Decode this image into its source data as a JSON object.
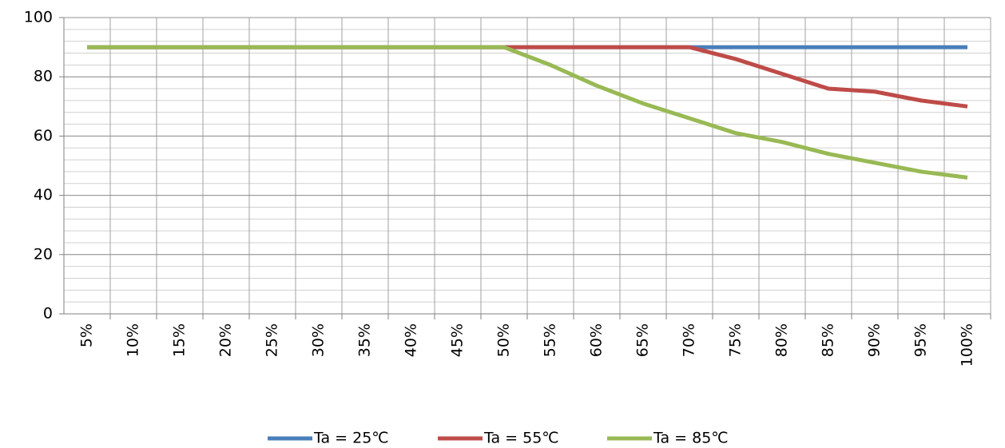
{
  "chart_data": {
    "type": "line",
    "categories": [
      "5%",
      "10%",
      "15%",
      "20%",
      "25%",
      "30%",
      "35%",
      "40%",
      "45%",
      "50%",
      "55%",
      "60%",
      "65%",
      "70%",
      "75%",
      "80%",
      "85%",
      "90%",
      "95%",
      "100%"
    ],
    "series": [
      {
        "name": "Ta = 25℃",
        "color": "#4a7ebb",
        "values": [
          90,
          90,
          90,
          90,
          90,
          90,
          90,
          90,
          90,
          90,
          90,
          90,
          90,
          90,
          90,
          90,
          90,
          90,
          90,
          90
        ]
      },
      {
        "name": "Ta = 55℃",
        "color": "#be4b48",
        "values": [
          90,
          90,
          90,
          90,
          90,
          90,
          90,
          90,
          90,
          90,
          90,
          90,
          90,
          90,
          86,
          81,
          76,
          75,
          72,
          70
        ]
      },
      {
        "name": "Ta = 85℃",
        "color": "#98b954",
        "values": [
          90,
          90,
          90,
          90,
          90,
          90,
          90,
          90,
          90,
          90,
          84,
          77,
          71,
          66,
          61,
          58,
          54,
          51,
          48,
          46
        ]
      }
    ],
    "ylim": [
      0,
      100
    ],
    "yticks": [
      0,
      20,
      40,
      60,
      80,
      100
    ],
    "minor_grid_step": 4,
    "grid": true,
    "legend": "bottom"
  }
}
